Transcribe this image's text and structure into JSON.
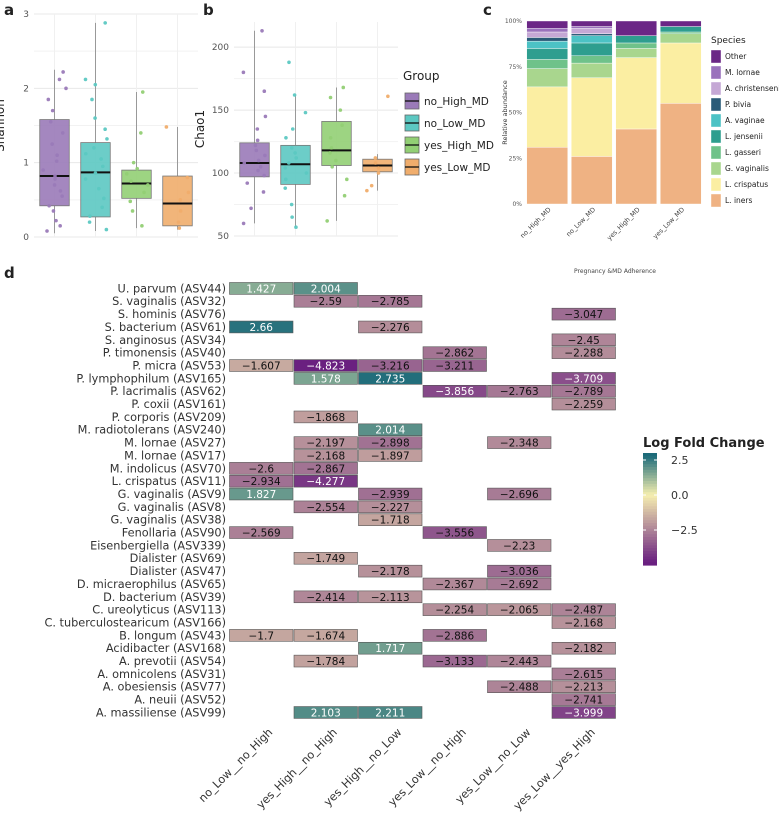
{
  "panel_labels": {
    "a": "a",
    "b": "b",
    "c": "c",
    "d": "d"
  },
  "colors": {
    "no_High_MD": "#9a7ab8",
    "no_Low_MD": "#5cc8c2",
    "yes_High_MD": "#92cf74",
    "yes_Low_MD": "#f0ad6c",
    "grid": "#e8e8e8",
    "heat_high": "#1d6b7a",
    "heat_mid": "#f6efb0",
    "heat_low": "#6a2080"
  },
  "chart_data": [
    {
      "id": "a",
      "type": "box",
      "title": "",
      "ylabel": "Shannon",
      "ylim": [
        0,
        3
      ],
      "yticks": [
        "0",
        "1",
        "2",
        "3"
      ],
      "categories": [
        "no_High_MD",
        "no_Low_MD",
        "yes_High_MD",
        "yes_Low_MD"
      ],
      "boxes": [
        {
          "group": "no_High_MD",
          "min": 0.05,
          "q1": 0.42,
          "median": 0.82,
          "q3": 1.58,
          "max": 2.25
        },
        {
          "group": "no_Low_MD",
          "min": 0.08,
          "q1": 0.27,
          "median": 0.87,
          "q3": 1.27,
          "max": 2.88
        },
        {
          "group": "yes_High_MD",
          "min": 0.12,
          "q1": 0.52,
          "median": 0.72,
          "q3": 0.9,
          "max": 1.95
        },
        {
          "group": "yes_Low_MD",
          "min": 0.1,
          "q1": 0.15,
          "median": 0.45,
          "q3": 0.82,
          "max": 1.48
        }
      ],
      "points": [
        [
          0.08,
          0.15,
          0.22,
          0.35,
          0.42,
          0.55,
          0.62,
          0.7,
          0.78,
          0.82,
          0.9,
          1.02,
          1.1,
          1.25,
          1.4,
          1.55,
          1.7,
          1.85,
          2.0,
          2.12,
          2.22
        ],
        [
          0.1,
          0.2,
          0.28,
          0.4,
          0.52,
          0.65,
          0.78,
          0.86,
          0.95,
          1.05,
          1.12,
          1.2,
          1.32,
          1.45,
          1.6,
          1.85,
          2.05,
          2.12,
          2.88
        ],
        [
          0.15,
          0.35,
          0.48,
          0.6,
          0.7,
          0.75,
          0.85,
          0.92,
          1.0,
          1.4,
          1.95
        ],
        [
          0.12,
          0.2,
          0.35,
          0.5,
          0.6,
          0.8,
          1.48
        ]
      ]
    },
    {
      "id": "b",
      "type": "box",
      "title": "",
      "ylabel": "Chao1",
      "ylim": [
        50,
        220
      ],
      "yticks": [
        "50",
        "100",
        "150",
        "200"
      ],
      "categories": [
        "no_High_MD",
        "no_Low_MD",
        "yes_High_MD",
        "yes_Low_MD"
      ],
      "boxes": [
        {
          "group": "no_High_MD",
          "min": 60,
          "q1": 97,
          "median": 108,
          "q3": 124,
          "max": 213
        },
        {
          "group": "no_Low_MD",
          "min": 57,
          "q1": 91,
          "median": 107,
          "q3": 122,
          "max": 162
        },
        {
          "group": "yes_High_MD",
          "min": 62,
          "q1": 106,
          "median": 118,
          "q3": 141,
          "max": 168
        },
        {
          "group": "yes_Low_MD",
          "min": 86,
          "q1": 101,
          "median": 106,
          "q3": 111,
          "max": 115
        }
      ],
      "points": [
        [
          60,
          72,
          85,
          92,
          98,
          102,
          105,
          108,
          110,
          114,
          118,
          122,
          126,
          135,
          145,
          165,
          180,
          213
        ],
        [
          57,
          65,
          75,
          88,
          95,
          100,
          104,
          108,
          112,
          116,
          120,
          128,
          135,
          148,
          162,
          188
        ],
        [
          62,
          82,
          95,
          105,
          110,
          116,
          120,
          128,
          138,
          150,
          160,
          168
        ],
        [
          86,
          90,
          100,
          104,
          108,
          112,
          161
        ]
      ]
    },
    {
      "id": "c",
      "type": "stacked_bar",
      "ylabel": "Relative abundance",
      "xlabel": "Pregnancy &MD Adherence",
      "ylim": [
        0,
        100
      ],
      "yticks": [
        "0%",
        "25%",
        "50%",
        "75%",
        "100%"
      ],
      "categories": [
        "no_High_MD",
        "no_Low_MD",
        "yes_High_MD",
        "yes_Low_MD"
      ],
      "legend_title": "Species",
      "series": [
        {
          "name": "L. iners",
          "color": "#efb283",
          "values": [
            31,
            26,
            41,
            55
          ]
        },
        {
          "name": "L. crispatus",
          "color": "#fbeea2",
          "values": [
            33,
            43,
            39,
            33
          ]
        },
        {
          "name": "G. vaginalis",
          "color": "#a9d68e",
          "values": [
            10,
            8,
            5,
            5
          ]
        },
        {
          "name": "L. gasseri",
          "color": "#6fc28a",
          "values": [
            5,
            4,
            3,
            1
          ]
        },
        {
          "name": "L. jensenii",
          "color": "#2e9e8f",
          "values": [
            6,
            7,
            4,
            3
          ]
        },
        {
          "name": "A. vaginae",
          "color": "#4cc2c5",
          "values": [
            4,
            4,
            0,
            0
          ]
        },
        {
          "name": "P. bivia",
          "color": "#2a5b78",
          "values": [
            2,
            1,
            0,
            0
          ]
        },
        {
          "name": "A. christensenii",
          "color": "#c5a8d5",
          "values": [
            3,
            3,
            0,
            0
          ]
        },
        {
          "name": "M. lornae",
          "color": "#9a72bc",
          "values": [
            2,
            1,
            0,
            0
          ]
        },
        {
          "name": "Other",
          "color": "#6b2786",
          "values": [
            4,
            3,
            8,
            3
          ]
        }
      ],
      "legend_order": [
        "Other",
        "M. lornae",
        "A. christensenii",
        "P. bivia",
        "A. vaginae",
        "L. jensenii",
        "L. gasseri",
        "G. vaginalis",
        "L. crispatus",
        "L. iners"
      ]
    },
    {
      "id": "d",
      "type": "heatmap",
      "columns": [
        "no_Low__no_High",
        "yes_High__no_High",
        "yes_High__no_Low",
        "yes_Low__no_High",
        "yes_Low__no_Low",
        "yes_Low__yes_High"
      ],
      "rows": [
        "U. parvum (ASV44)",
        "S. vaginalis (ASV32)",
        "S. hominis (ASV76)",
        "S. bacterium (ASV61)",
        "S. anginosus (ASV34)",
        "P. timonensis (ASV40)",
        "P. micra (ASV53)",
        "P. lymphophilum (ASV165)",
        "P. lacrimalis (ASV62)",
        "P. coxii (ASV161)",
        "P. corporis (ASV209)",
        "M. radiotolerans (ASV240)",
        "M. lornae (ASV27)",
        "M. lornae (ASV17)",
        "M. indolicus (ASV70)",
        "L. crispatus (ASV11)",
        "G. vaginalis (ASV9)",
        "G. vaginalis (ASV8)",
        "G. vaginalis (ASV38)",
        "Fenollaria (ASV90)",
        "Eisenbergiella (ASV339)",
        "Dialister (ASV69)",
        "Dialister (ASV47)",
        "D. micraerophilus (ASV65)",
        "D. bacterium (ASV39)",
        "C. ureolyticus (ASV113)",
        "C. tuberculostearicum (ASV166)",
        "B. longum (ASV43)",
        "Acidibacter (ASV168)",
        "A. prevotii (ASV54)",
        "A. omnicolens (ASV31)",
        "A. obesiensis (ASV77)",
        "A. neuii (ASV52)",
        "A. massiliense (ASV99)"
      ],
      "values": [
        [
          1.427,
          2.004,
          null,
          null,
          null,
          null
        ],
        [
          null,
          -2.59,
          -2.785,
          null,
          null,
          null
        ],
        [
          null,
          null,
          null,
          null,
          null,
          -3.047
        ],
        [
          2.66,
          null,
          -2.276,
          null,
          null,
          null
        ],
        [
          null,
          null,
          null,
          null,
          null,
          -2.45
        ],
        [
          null,
          null,
          null,
          -2.862,
          null,
          -2.288
        ],
        [
          -1.607,
          -4.823,
          -3.216,
          -3.211,
          null,
          null
        ],
        [
          null,
          1.578,
          2.735,
          null,
          null,
          -3.709
        ],
        [
          null,
          null,
          null,
          -3.856,
          -2.763,
          -2.789
        ],
        [
          null,
          null,
          null,
          null,
          null,
          -2.259
        ],
        [
          null,
          -1.868,
          null,
          null,
          null,
          null
        ],
        [
          null,
          null,
          2.014,
          null,
          null,
          null
        ],
        [
          null,
          -2.197,
          -2.898,
          null,
          -2.348,
          null
        ],
        [
          null,
          -2.168,
          -1.897,
          null,
          null,
          null
        ],
        [
          -2.6,
          -2.867,
          null,
          null,
          null,
          null
        ],
        [
          -2.934,
          -4.277,
          null,
          null,
          null,
          null
        ],
        [
          1.827,
          null,
          -2.939,
          null,
          -2.696,
          null
        ],
        [
          null,
          -2.554,
          -2.227,
          null,
          null,
          null
        ],
        [
          null,
          null,
          -1.718,
          null,
          null,
          null
        ],
        [
          -2.569,
          null,
          null,
          -3.556,
          null,
          null
        ],
        [
          null,
          null,
          null,
          null,
          -2.23,
          null
        ],
        [
          null,
          -1.749,
          null,
          null,
          null,
          null
        ],
        [
          null,
          null,
          -2.178,
          null,
          -3.036,
          null
        ],
        [
          null,
          null,
          null,
          -2.367,
          -2.692,
          null
        ],
        [
          null,
          -2.414,
          -2.113,
          null,
          null,
          null
        ],
        [
          null,
          null,
          null,
          -2.254,
          -2.065,
          -2.487
        ],
        [
          null,
          null,
          null,
          null,
          null,
          -2.168
        ],
        [
          -1.7,
          -1.674,
          null,
          -2.886,
          null,
          null
        ],
        [
          null,
          null,
          1.717,
          null,
          null,
          -2.182
        ],
        [
          null,
          -1.784,
          null,
          -3.133,
          -2.443,
          null
        ],
        [
          null,
          null,
          null,
          null,
          null,
          -2.615
        ],
        [
          null,
          null,
          null,
          null,
          -2.488,
          -2.213
        ],
        [
          null,
          null,
          null,
          null,
          null,
          -2.741
        ],
        [
          null,
          2.103,
          2.211,
          null,
          null,
          -3.999
        ]
      ],
      "labels": [
        [
          null,
          null,
          null,
          null,
          null,
          null
        ],
        [
          null,
          "−2.59",
          "−2.785",
          null,
          null,
          null
        ],
        [
          null,
          null,
          null,
          null,
          null,
          "−3.047"
        ],
        [
          null,
          null,
          "−2.276",
          null,
          null,
          null
        ],
        [
          null,
          null,
          null,
          null,
          null,
          "−2.45"
        ],
        [
          null,
          null,
          null,
          "−2.862",
          null,
          "−2.288"
        ],
        [
          "−1.607",
          "−4.823",
          "−3.216",
          "−3.211",
          null,
          null
        ],
        [
          null,
          null,
          null,
          null,
          null,
          "−3.709"
        ],
        [
          null,
          null,
          null,
          "−3.856",
          "−2.763",
          "−2.789"
        ],
        [
          null,
          null,
          null,
          null,
          null,
          "−2.259"
        ],
        [
          null,
          "−1.868",
          null,
          null,
          null,
          null
        ],
        [
          null,
          null,
          null,
          null,
          null,
          null
        ],
        [
          null,
          "−2.197",
          "−2.898",
          null,
          "−2.348",
          null
        ],
        [
          null,
          "−2.168",
          "−1.897",
          null,
          null,
          null
        ],
        [
          "−2.6",
          "−2.867",
          null,
          null,
          null,
          null
        ],
        [
          "−2.934",
          "−4.277",
          null,
          null,
          null,
          null
        ],
        [
          null,
          null,
          "−2.939",
          null,
          "−2.696",
          null
        ],
        [
          null,
          "−2.554",
          "−2.227",
          null,
          null,
          null
        ],
        [
          null,
          null,
          "−1.718",
          null,
          null,
          null
        ],
        [
          "−2.569",
          null,
          null,
          "−3.556",
          null,
          null
        ],
        [
          null,
          null,
          null,
          null,
          "−2.23",
          null
        ],
        [
          null,
          "−1.749",
          null,
          null,
          null,
          null
        ],
        [
          null,
          null,
          "−2.178",
          null,
          "−3.036",
          null
        ],
        [
          null,
          null,
          null,
          "−2.367",
          "−2.692",
          null
        ],
        [
          null,
          "−2.414",
          "−2.113",
          null,
          null,
          null
        ],
        [
          null,
          null,
          null,
          "−2.254",
          "−2.065",
          "−2.487"
        ],
        [
          null,
          null,
          null,
          null,
          null,
          "−2.168"
        ],
        [
          "−1.7",
          "−1.674",
          null,
          "−2.886",
          null,
          null
        ],
        [
          null,
          null,
          null,
          null,
          null,
          "−2.182"
        ],
        [
          null,
          "−1.784",
          null,
          "−3.133",
          "−2.443",
          null
        ],
        [
          null,
          null,
          null,
          null,
          null,
          "−2.615"
        ],
        [
          null,
          null,
          null,
          null,
          "−2.488",
          "−2.213"
        ],
        [
          null,
          null,
          null,
          null,
          null,
          "−2.741"
        ],
        [
          null,
          null,
          null,
          null,
          null,
          "−3.999"
        ]
      ],
      "legend_title": "Log Fold Change",
      "legend_ticks": [
        {
          "value": 2.5,
          "label": "2.5"
        },
        {
          "value": 0,
          "label": "0.0"
        },
        {
          "value": -2.5,
          "label": "−2.5"
        }
      ],
      "legend_range": [
        -5,
        3
      ]
    }
  ],
  "group_legend": {
    "title": "Group",
    "items": [
      "no_High_MD",
      "no_Low_MD",
      "yes_High_MD",
      "yes_Low_MD"
    ]
  }
}
